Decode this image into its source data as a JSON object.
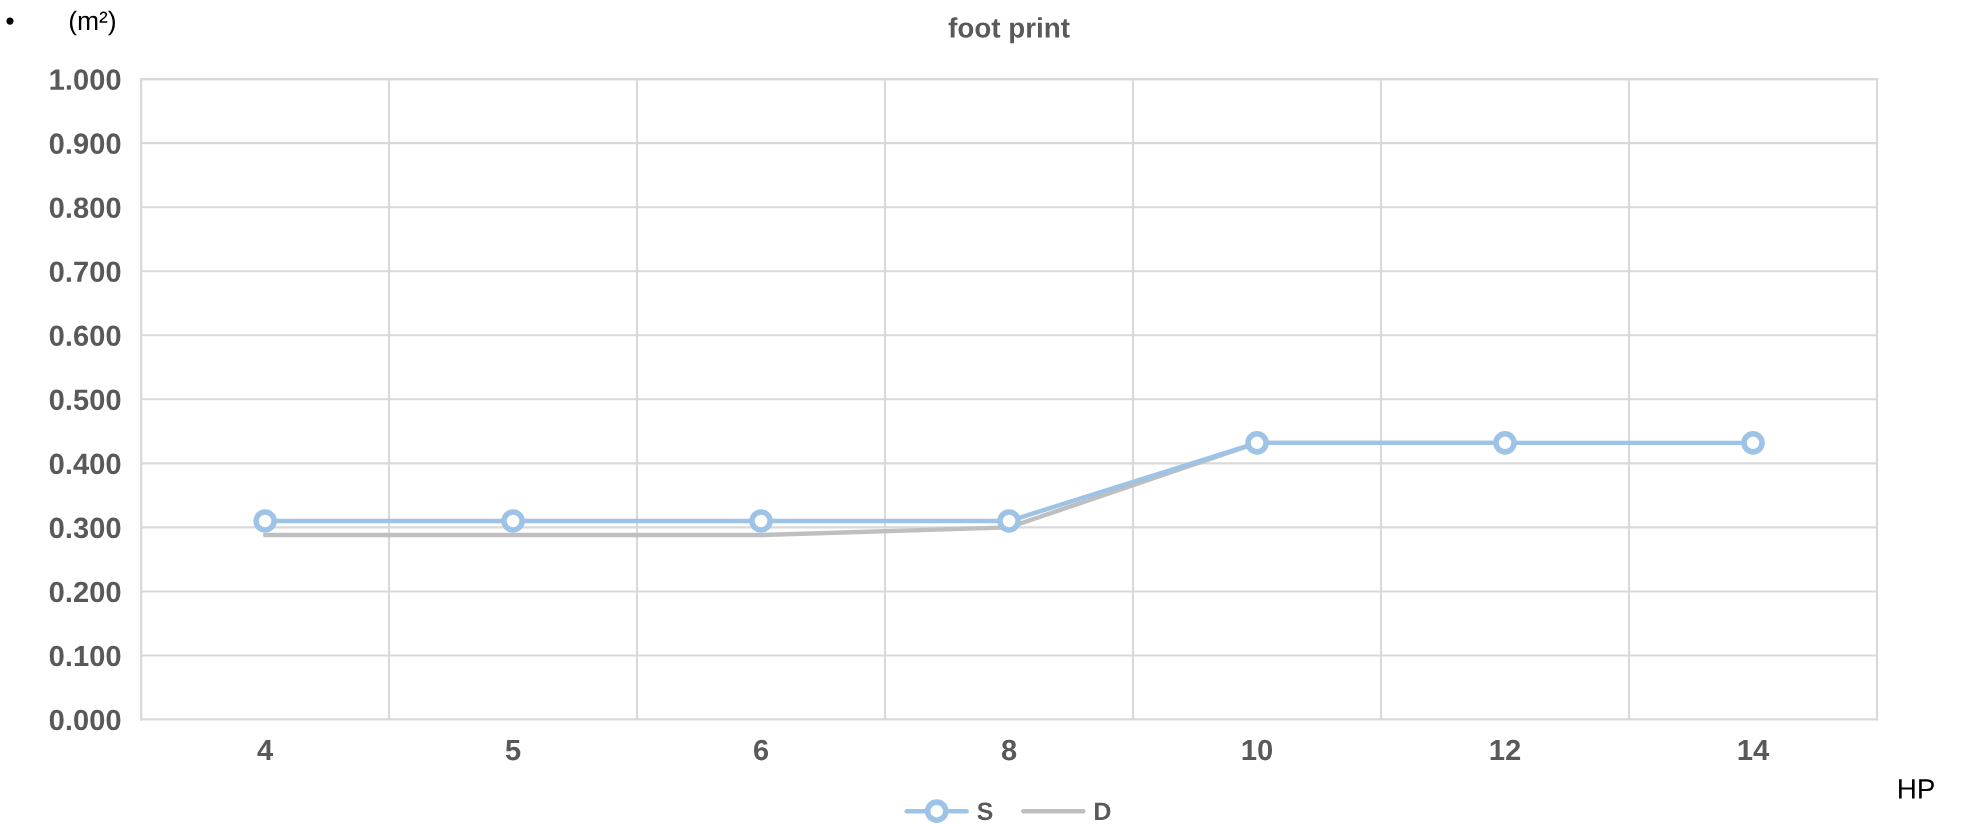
{
  "chart_data": {
    "type": "line",
    "title": "foot print",
    "ylabel": "(m²)",
    "xlabel": "HP",
    "annotations": [
      "•"
    ],
    "categories": [
      "4",
      "5",
      "6",
      "8",
      "10",
      "12",
      "14"
    ],
    "series": [
      {
        "name": "S",
        "color": "#9dc3e6",
        "marker": "circle",
        "values": [
          0.31,
          0.31,
          0.31,
          0.31,
          0.432,
          0.432,
          0.432
        ]
      },
      {
        "name": "D",
        "color": "#bfbfbf",
        "marker": "none",
        "values": [
          0.288,
          0.288,
          0.288,
          0.3,
          0.432,
          0.432,
          null
        ]
      }
    ],
    "ylim": [
      0,
      1
    ],
    "yticks": [
      {
        "value": 0,
        "label": "0.000"
      },
      {
        "value": 0.1,
        "label": "0.100"
      },
      {
        "value": 0.2,
        "label": "0.200"
      },
      {
        "value": 0.3,
        "label": "0.300"
      },
      {
        "value": 0.4,
        "label": "0.400"
      },
      {
        "value": 0.5,
        "label": "0.500"
      },
      {
        "value": 0.6,
        "label": "0.600"
      },
      {
        "value": 0.7,
        "label": "0.700"
      },
      {
        "value": 0.8,
        "label": "0.800"
      },
      {
        "value": 0.9,
        "label": "0.900"
      },
      {
        "value": 1,
        "label": "1.000"
      }
    ],
    "grid": true,
    "legend": "bottom",
    "line_style": "solid"
  }
}
